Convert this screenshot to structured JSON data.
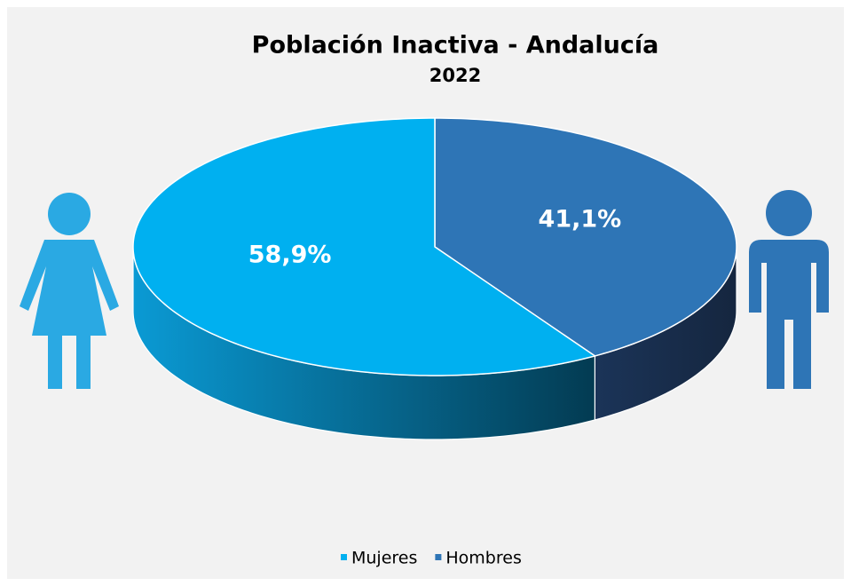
{
  "chart_data": {
    "type": "pie3d",
    "title": "Población Inactiva - Andalucía",
    "subtitle": "2022",
    "categories": [
      "Mujeres",
      "Hombres"
    ],
    "values": [
      58.9,
      41.1
    ],
    "value_labels": [
      "58,9%",
      "41,1%"
    ],
    "colors": [
      "#00b0f0",
      "#2e75b6"
    ],
    "legend": "bottom"
  }
}
